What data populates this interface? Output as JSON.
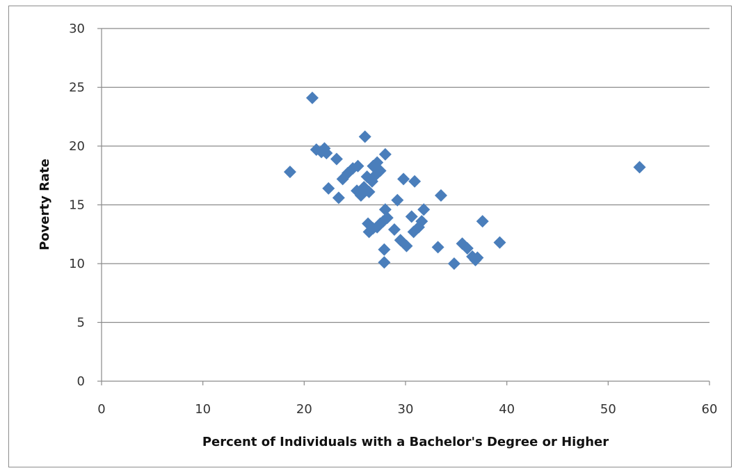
{
  "top_caption": "",
  "chart_data": {
    "type": "scatter",
    "title": "",
    "xlabel": "Percent of Individuals  with a Bachelor's Degree or Higher",
    "ylabel": "Poverty Rate",
    "xlim": [
      0,
      60
    ],
    "ylim": [
      0,
      30
    ],
    "x_ticks": [
      0,
      10,
      20,
      30,
      40,
      50,
      60
    ],
    "y_ticks": [
      0,
      5,
      10,
      15,
      20,
      25,
      30
    ],
    "grid": "horizontal",
    "legend": "none",
    "marker": "diamond",
    "marker_color": "#4a7ebb",
    "points": [
      {
        "x": 18.6,
        "y": 17.8
      },
      {
        "x": 20.8,
        "y": 24.1
      },
      {
        "x": 21.2,
        "y": 19.7
      },
      {
        "x": 21.7,
        "y": 19.5
      },
      {
        "x": 22.0,
        "y": 19.8
      },
      {
        "x": 22.2,
        "y": 19.4
      },
      {
        "x": 22.4,
        "y": 16.4
      },
      {
        "x": 23.2,
        "y": 18.9
      },
      {
        "x": 23.4,
        "y": 15.6
      },
      {
        "x": 23.8,
        "y": 17.2
      },
      {
        "x": 24.3,
        "y": 17.7
      },
      {
        "x": 24.8,
        "y": 18.1
      },
      {
        "x": 25.3,
        "y": 18.3
      },
      {
        "x": 25.2,
        "y": 16.2
      },
      {
        "x": 25.6,
        "y": 15.8
      },
      {
        "x": 25.9,
        "y": 16.5
      },
      {
        "x": 26.0,
        "y": 20.8
      },
      {
        "x": 26.2,
        "y": 17.4
      },
      {
        "x": 26.4,
        "y": 16.1
      },
      {
        "x": 26.7,
        "y": 17.0
      },
      {
        "x": 26.8,
        "y": 18.3
      },
      {
        "x": 27.0,
        "y": 17.5
      },
      {
        "x": 27.2,
        "y": 18.6
      },
      {
        "x": 27.5,
        "y": 17.9
      },
      {
        "x": 28.0,
        "y": 19.3
      },
      {
        "x": 26.3,
        "y": 13.4
      },
      {
        "x": 26.4,
        "y": 12.7
      },
      {
        "x": 26.8,
        "y": 13.0
      },
      {
        "x": 27.2,
        "y": 13.1
      },
      {
        "x": 27.5,
        "y": 13.4
      },
      {
        "x": 27.8,
        "y": 13.6
      },
      {
        "x": 28.0,
        "y": 14.6
      },
      {
        "x": 28.2,
        "y": 13.9
      },
      {
        "x": 27.9,
        "y": 11.2
      },
      {
        "x": 27.9,
        "y": 10.1
      },
      {
        "x": 28.9,
        "y": 12.9
      },
      {
        "x": 29.2,
        "y": 15.4
      },
      {
        "x": 29.5,
        "y": 12.0
      },
      {
        "x": 29.8,
        "y": 17.2
      },
      {
        "x": 30.1,
        "y": 11.5
      },
      {
        "x": 30.6,
        "y": 14.0
      },
      {
        "x": 30.9,
        "y": 17.0
      },
      {
        "x": 30.8,
        "y": 12.7
      },
      {
        "x": 31.3,
        "y": 13.1
      },
      {
        "x": 31.6,
        "y": 13.6
      },
      {
        "x": 31.8,
        "y": 14.6
      },
      {
        "x": 33.2,
        "y": 11.4
      },
      {
        "x": 33.5,
        "y": 15.8
      },
      {
        "x": 34.8,
        "y": 10.0
      },
      {
        "x": 35.6,
        "y": 11.7
      },
      {
        "x": 36.1,
        "y": 11.3
      },
      {
        "x": 36.6,
        "y": 10.6
      },
      {
        "x": 36.9,
        "y": 10.3
      },
      {
        "x": 37.1,
        "y": 10.5
      },
      {
        "x": 37.6,
        "y": 13.6
      },
      {
        "x": 39.3,
        "y": 11.8
      },
      {
        "x": 53.1,
        "y": 18.2
      }
    ]
  }
}
